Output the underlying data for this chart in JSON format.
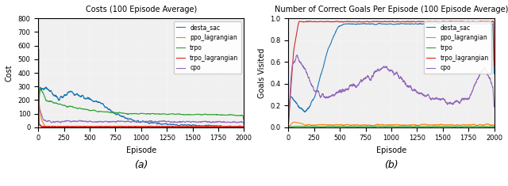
{
  "title_left": "Costs (100 Episode Average)",
  "title_right": "Number of Correct Goals Per Episode (100 Episode Average)",
  "xlabel": "Episode",
  "ylabel_left": "Cost",
  "ylabel_right": "Goals Visited",
  "label_a": "(a)",
  "label_b": "(b)",
  "x_max": 2000,
  "x_ticks": [
    0,
    250,
    500,
    750,
    1000,
    1250,
    1500,
    1750,
    2000
  ],
  "ylim_left": [
    0,
    800
  ],
  "yticks_left": [
    0,
    100,
    200,
    300,
    400,
    500,
    600,
    700,
    800
  ],
  "ylim_right": [
    0.0,
    1.0
  ],
  "yticks_right": [
    0.0,
    0.2,
    0.4,
    0.6,
    0.8,
    1.0
  ],
  "legend_labels": [
    "desta_sac",
    "ppo_lagrangian",
    "trpo",
    "trpo_lagrangian",
    "cpo"
  ],
  "colors": {
    "desta_sac": "#1f77b4",
    "ppo_lagrangian": "#ff7f0e",
    "trpo": "#2ca02c",
    "trpo_lagrangian": "#d62728",
    "cpo": "#9467bd"
  },
  "linewidth": 0.8,
  "background": "#f0f0f0",
  "seed": 42
}
